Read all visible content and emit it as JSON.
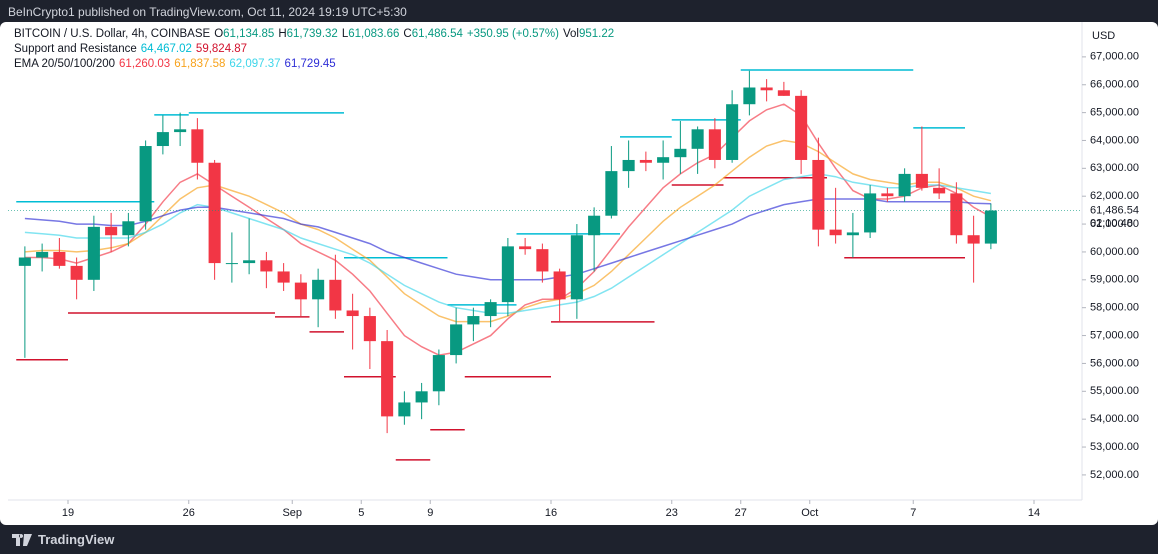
{
  "header": {
    "publisher": "BeInCrypto1 published on TradingView.com, Oct 11, 2024 19:19 UTC+5:30"
  },
  "footer": {
    "brand": "TradingView"
  },
  "legend": {
    "symbol": "BITCOIN / U.S. Dollar, 4h, COINBASE",
    "ohlc": [
      {
        "label": "O",
        "value": "61,134.85"
      },
      {
        "label": "H",
        "value": "61,739.32"
      },
      {
        "label": "L",
        "value": "61,083.66"
      },
      {
        "label": "C",
        "value": "61,486.54"
      }
    ],
    "change": "+350.95 (+0.57%)",
    "volume": {
      "label": "Vol",
      "value": "951.22"
    },
    "indicators": [
      {
        "name": "Support and Resistance",
        "values": [
          {
            "text": "64,467.02",
            "color": "#00bcd4"
          },
          {
            "text": "59,824.87",
            "color": "#d1122d"
          }
        ]
      },
      {
        "name": "EMA 20/50/100/200",
        "values": [
          {
            "text": "61,260.03",
            "color": "#f23645"
          },
          {
            "text": "61,837.58",
            "color": "#f7a21b"
          },
          {
            "text": "62,097.37",
            "color": "#3ed6ea"
          },
          {
            "text": "61,729.45",
            "color": "#2e2ed6"
          }
        ]
      }
    ]
  },
  "chart_data": {
    "type": "candlestick",
    "currency": "USD",
    "x": [
      "Aug 16",
      "Aug 17",
      "Aug 18",
      "Aug 19",
      "Aug 20",
      "Aug 21",
      "Aug 22",
      "Aug 23",
      "Aug 24",
      "Aug 25",
      "Aug 26",
      "Aug 27",
      "Aug 28",
      "Aug 29",
      "Aug 30",
      "Aug 31",
      "Sep 1",
      "Sep 2",
      "Sep 3",
      "Sep 4",
      "Sep 5",
      "Sep 6",
      "Sep 7",
      "Sep 8",
      "Sep 9",
      "Sep 10",
      "Sep 11",
      "Sep 12",
      "Sep 13",
      "Sep 14",
      "Sep 15",
      "Sep 16",
      "Sep 17",
      "Sep 18",
      "Sep 19",
      "Sep 20",
      "Sep 21",
      "Sep 22",
      "Sep 23",
      "Sep 24",
      "Sep 25",
      "Sep 26",
      "Sep 27",
      "Sep 28",
      "Sep 29",
      "Sep 30",
      "Oct 1",
      "Oct 2",
      "Oct 3",
      "Oct 4",
      "Oct 5",
      "Oct 6",
      "Oct 7",
      "Oct 8",
      "Oct 9",
      "Oct 10",
      "Oct 11"
    ],
    "candles": [
      [
        59500,
        60200,
        56200,
        59800
      ],
      [
        59800,
        60300,
        59300,
        60000
      ],
      [
        60000,
        60500,
        59400,
        59500
      ],
      [
        59500,
        59800,
        58300,
        59000
      ],
      [
        59000,
        61300,
        58600,
        60900
      ],
      [
        60900,
        61400,
        60000,
        60600
      ],
      [
        60600,
        61400,
        60200,
        61100
      ],
      [
        61100,
        64000,
        60800,
        63800
      ],
      [
        63800,
        64900,
        63500,
        64300
      ],
      [
        64300,
        65000,
        63800,
        64400
      ],
      [
        64400,
        64800,
        62600,
        63200
      ],
      [
        63200,
        63300,
        59000,
        59600
      ],
      [
        59600,
        60700,
        58900,
        59600
      ],
      [
        59600,
        61200,
        59200,
        59700
      ],
      [
        59700,
        60000,
        58700,
        59300
      ],
      [
        59300,
        59600,
        58600,
        58900
      ],
      [
        58900,
        59200,
        57700,
        58300
      ],
      [
        58300,
        59400,
        57300,
        59000
      ],
      [
        59000,
        59900,
        57600,
        57900
      ],
      [
        57900,
        58500,
        56500,
        57700
      ],
      [
        57700,
        58000,
        55800,
        56800
      ],
      [
        56800,
        57200,
        53500,
        54100
      ],
      [
        54100,
        55000,
        53800,
        54600
      ],
      [
        54600,
        55300,
        54000,
        55000
      ],
      [
        55000,
        56500,
        54500,
        56300
      ],
      [
        56300,
        58000,
        56000,
        57400
      ],
      [
        57400,
        58000,
        56800,
        57700
      ],
      [
        57700,
        58300,
        57300,
        58200
      ],
      [
        58200,
        60500,
        57700,
        60200
      ],
      [
        60200,
        60500,
        59900,
        60100
      ],
      [
        60100,
        60300,
        58900,
        59300
      ],
      [
        59300,
        59400,
        57500,
        58300
      ],
      [
        58300,
        61000,
        57600,
        60600
      ],
      [
        60600,
        61600,
        59300,
        61300
      ],
      [
        61300,
        63800,
        61200,
        62900
      ],
      [
        62900,
        64000,
        62300,
        63300
      ],
      [
        63300,
        63600,
        62900,
        63200
      ],
      [
        63200,
        64000,
        62600,
        63400
      ],
      [
        63400,
        64700,
        62800,
        63700
      ],
      [
        63700,
        64500,
        62800,
        64400
      ],
      [
        64400,
        64800,
        63000,
        63300
      ],
      [
        63300,
        65800,
        63200,
        65300
      ],
      [
        65300,
        66500,
        64900,
        65900
      ],
      [
        65900,
        66200,
        65400,
        65800
      ],
      [
        65800,
        66100,
        65600,
        65600
      ],
      [
        65600,
        65800,
        62800,
        63300
      ],
      [
        63300,
        64100,
        60200,
        60800
      ],
      [
        60800,
        62300,
        60300,
        60600
      ],
      [
        60600,
        61400,
        59800,
        60700
      ],
      [
        60700,
        62400,
        60500,
        62100
      ],
      [
        62100,
        62300,
        61800,
        62000
      ],
      [
        62000,
        63000,
        61800,
        62800
      ],
      [
        62800,
        64500,
        62200,
        62300
      ],
      [
        62300,
        63000,
        61900,
        62100
      ],
      [
        62100,
        62500,
        60300,
        60600
      ],
      [
        60600,
        61300,
        58900,
        60300
      ],
      [
        60300,
        61739.32,
        60100,
        61486.54
      ]
    ],
    "up_color": "#089981",
    "down_color": "#f23645",
    "emas": [
      {
        "color": "#f23645",
        "values": [
          59800,
          59800,
          59750,
          59600,
          59800,
          60000,
          60300,
          61000,
          61800,
          62500,
          62800,
          62400,
          62000,
          61600,
          61200,
          60800,
          60300,
          60000,
          59700,
          59200,
          58600,
          57800,
          57000,
          56600,
          56300,
          56400,
          56700,
          57000,
          57600,
          58100,
          58300,
          58300,
          58700,
          59300,
          60100,
          60900,
          61600,
          62300,
          62800,
          63200,
          63500,
          64100,
          64700,
          65100,
          65300,
          64900,
          63900,
          63000,
          62200,
          61900,
          61900,
          62000,
          62300,
          62400,
          62100,
          61600,
          61260.03
        ]
      },
      {
        "color": "#f7a21b",
        "values": [
          60000,
          60050,
          60050,
          60000,
          60050,
          60150,
          60300,
          60700,
          61300,
          61900,
          62300,
          62400,
          62200,
          62000,
          61700,
          61400,
          61000,
          60800,
          60500,
          60100,
          59700,
          59100,
          58500,
          58100,
          57700,
          57500,
          57500,
          57500,
          57700,
          58000,
          58200,
          58300,
          58500,
          58800,
          59300,
          59900,
          60500,
          61100,
          61600,
          62000,
          62400,
          62900,
          63400,
          63800,
          64000,
          63900,
          63600,
          63200,
          62800,
          62600,
          62500,
          62400,
          62500,
          62500,
          62300,
          62000,
          61837.58
        ]
      },
      {
        "color": "#3ed6ea",
        "values": [
          60700,
          60650,
          60600,
          60500,
          60500,
          60500,
          60500,
          60700,
          61000,
          61400,
          61700,
          61600,
          61400,
          61200,
          61000,
          60800,
          60500,
          60300,
          60100,
          59900,
          59600,
          59200,
          58800,
          58500,
          58200,
          58000,
          57900,
          57800,
          57800,
          57900,
          58000,
          58100,
          58200,
          58400,
          58700,
          59100,
          59500,
          59900,
          60300,
          60700,
          61100,
          61500,
          62000,
          62300,
          62600,
          62700,
          62800,
          62700,
          62500,
          62400,
          62300,
          62300,
          62400,
          62400,
          62300,
          62200,
          62097.37
        ]
      },
      {
        "color": "#2e2ed6",
        "values": [
          61200,
          61150,
          61100,
          61000,
          61000,
          60950,
          60950,
          61100,
          61300,
          61500,
          61600,
          61600,
          61500,
          61400,
          61300,
          61200,
          61000,
          60900,
          60700,
          60500,
          60300,
          60000,
          59800,
          59600,
          59400,
          59200,
          59100,
          59000,
          59000,
          59000,
          59000,
          59100,
          59200,
          59400,
          59600,
          59800,
          60000,
          60200,
          60400,
          60600,
          60800,
          61000,
          61300,
          61500,
          61700,
          61800,
          61900,
          61900,
          61900,
          61900,
          61800,
          61800,
          61800,
          61800,
          61800,
          61750,
          61729.45
        ]
      }
    ],
    "levels": [
      {
        "color": "#00bcd4",
        "start": "Aug 16",
        "end": "Aug 23",
        "price": 61800
      },
      {
        "color": "#00bcd4",
        "start": "Aug 24",
        "end": "Aug 25",
        "price": 64920
      },
      {
        "color": "#00bcd4",
        "start": "Aug 26",
        "end": "Sep 3",
        "price": 64990
      },
      {
        "color": "#00bcd4",
        "start": "Sep 4",
        "end": "Sep 9",
        "price": 59790
      },
      {
        "color": "#00bcd4",
        "start": "Sep 10",
        "end": "Sep 13",
        "price": 58100
      },
      {
        "color": "#00bcd4",
        "start": "Sep 14",
        "end": "Sep 19",
        "price": 60650
      },
      {
        "color": "#00bcd4",
        "start": "Sep 20",
        "end": "Sep 22",
        "price": 64130
      },
      {
        "color": "#00bcd4",
        "start": "Sep 23",
        "end": "Sep 26",
        "price": 64740
      },
      {
        "color": "#00bcd4",
        "start": "Sep 27",
        "end": "Oct 6",
        "price": 66530
      },
      {
        "color": "#00bcd4",
        "start": "Oct 7",
        "end": "Oct 9",
        "price": 64450
      },
      {
        "color": "#d1122d",
        "start": "Aug 16",
        "end": "Aug 18",
        "price": 56130
      },
      {
        "color": "#d1122d",
        "start": "Aug 19",
        "end": "Aug 30",
        "price": 57810
      },
      {
        "color": "#d1122d",
        "start": "Aug 31",
        "end": "Sep 1",
        "price": 57670
      },
      {
        "color": "#d1122d",
        "start": "Sep 2",
        "end": "Sep 3",
        "price": 57130
      },
      {
        "color": "#d1122d",
        "start": "Sep 4",
        "end": "Sep 6",
        "price": 55520
      },
      {
        "color": "#d1122d",
        "start": "Sep 7",
        "end": "Sep 8",
        "price": 52540
      },
      {
        "color": "#d1122d",
        "start": "Sep 9",
        "end": "Sep 10",
        "price": 53620
      },
      {
        "color": "#d1122d",
        "start": "Sep 11",
        "end": "Sep 15",
        "price": 55520
      },
      {
        "color": "#d1122d",
        "start": "Sep 16",
        "end": "Sep 21",
        "price": 57490
      },
      {
        "color": "#d1122d",
        "start": "Sep 23",
        "end": "Sep 25",
        "price": 62400
      },
      {
        "color": "#d1122d",
        "start": "Sep 26",
        "end": "Oct 1",
        "price": 62660
      },
      {
        "color": "#d1122d",
        "start": "Oct 3",
        "end": "Oct 9",
        "price": 59790
      }
    ],
    "xlim": [
      "Aug 16",
      "Oct 14"
    ],
    "xticks": [
      {
        "value": "Aug 19",
        "label": "19"
      },
      {
        "value": "Aug 26",
        "label": "26"
      },
      {
        "value": "Sep 1",
        "label": "Sep"
      },
      {
        "value": "Sep 5",
        "label": "5"
      },
      {
        "value": "Sep 9",
        "label": "9"
      },
      {
        "value": "Sep 16",
        "label": "16"
      },
      {
        "value": "Sep 23",
        "label": "23"
      },
      {
        "value": "Sep 27",
        "label": "27"
      },
      {
        "value": "Oct 1",
        "label": "Oct"
      },
      {
        "value": "Oct 7",
        "label": "7"
      },
      {
        "value": "Oct 14",
        "label": "14"
      }
    ],
    "ylim": [
      51100,
      68250
    ],
    "yticks": [
      {
        "value": 52000,
        "label": "52,000.00"
      },
      {
        "value": 53000,
        "label": "53,000.00"
      },
      {
        "value": 54000,
        "label": "54,000.00"
      },
      {
        "value": 55000,
        "label": "55,000.00"
      },
      {
        "value": 56000,
        "label": "56,000.00"
      },
      {
        "value": 57000,
        "label": "57,000.00"
      },
      {
        "value": 58000,
        "label": "58,000.00"
      },
      {
        "value": 59000,
        "label": "59,000.00"
      },
      {
        "value": 60000,
        "label": "60,000.00"
      },
      {
        "value": 61000,
        "label": "61,000.00"
      },
      {
        "value": 62000,
        "label": "62,000.00"
      },
      {
        "value": 63000,
        "label": "63,000.00"
      },
      {
        "value": 64000,
        "label": "64,000.00"
      },
      {
        "value": 65000,
        "label": "65,000.00"
      },
      {
        "value": 66000,
        "label": "66,000.00"
      },
      {
        "value": 67000,
        "label": "67,000.00"
      }
    ],
    "last_price": {
      "value": 61486.54,
      "label": "61,486.54"
    },
    "countdown": "02:10:48",
    "grid": false
  }
}
